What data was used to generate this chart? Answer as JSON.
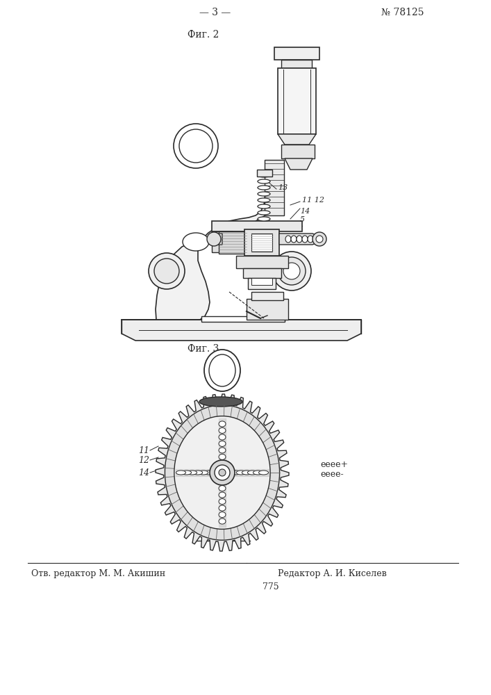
{
  "page_number_left": "— 3 —",
  "page_number_right": "№ 78125",
  "fig2_label": "Фиг. 2",
  "fig3_label": "Фиг. 3",
  "footer_left": "Отв. редактор М. М. Акишин",
  "footer_right": "Редактор А. И. Киселев",
  "footer_page": "775",
  "bg_color": "#ffffff",
  "line_color": "#2a2a2a"
}
